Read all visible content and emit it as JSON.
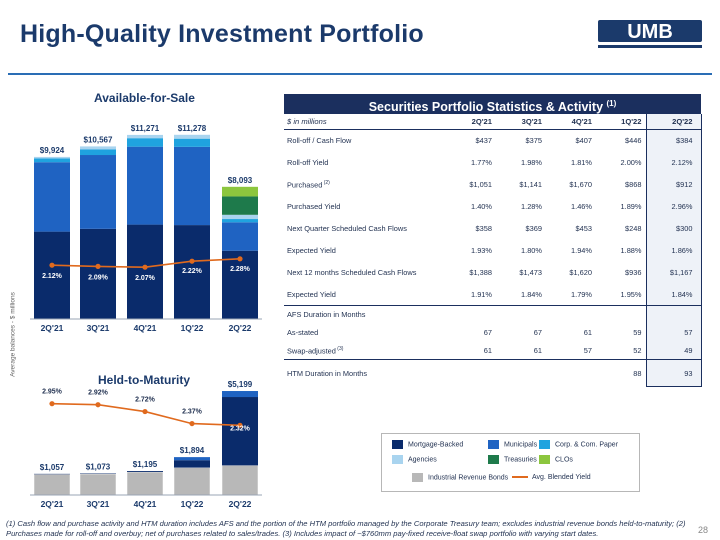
{
  "header": {
    "title": "High-Quality Investment Portfolio",
    "logo_text": "UMB"
  },
  "side_axis_label": "Average balances - $ millions",
  "afs_title": "Available-for-Sale",
  "htm_title": "Held-to-Maturity",
  "colors": {
    "mortgage_backed": "#0a2b6b",
    "municipals": "#1f63c2",
    "corp_com_paper": "#1fa3df",
    "agencies": "#a9d4ef",
    "treasuries": "#1e7a4b",
    "clos": "#8cc63e",
    "industrial_revenue_bonds": "#b8b8b8",
    "avg_blended_yield": "#e06a1e",
    "header_navy": "#1b2f5e",
    "title_blue": "#1b3a6b"
  },
  "chart_data": [
    {
      "type": "bar",
      "stacked": true,
      "name": "Available-for-Sale",
      "categories": [
        "2Q'21",
        "3Q'21",
        "4Q'21",
        "1Q'22",
        "2Q'22"
      ],
      "totals": [
        9924,
        10567,
        11271,
        11278,
        8093
      ],
      "total_labels": [
        "$9,924",
        "$10,567",
        "$11,271",
        "$11,278",
        "$8,093"
      ],
      "series": [
        {
          "name": "Mortgage-Backed",
          "values": [
            5350,
            5520,
            5780,
            5750,
            4180
          ]
        },
        {
          "name": "Municipals",
          "values": [
            4250,
            4520,
            4770,
            4790,
            1740
          ]
        },
        {
          "name": "Corp. & Com. Paper",
          "values": [
            230,
            350,
            520,
            500,
            200
          ]
        },
        {
          "name": "Agencies",
          "values": [
            94,
            177,
            201,
            238,
            260
          ]
        },
        {
          "name": "Treasuries",
          "values": [
            0,
            0,
            0,
            0,
            1123
          ]
        },
        {
          "name": "CLOs",
          "values": [
            0,
            0,
            0,
            0,
            590
          ]
        }
      ],
      "line": {
        "name": "Avg. Blended Yield",
        "values": [
          2.12,
          2.09,
          2.07,
          2.22,
          2.28
        ],
        "labels": [
          "2.12%",
          "2.09%",
          "2.07%",
          "2.22%",
          "2.28%"
        ]
      },
      "ylim": [
        0,
        12000
      ]
    },
    {
      "type": "bar",
      "stacked": true,
      "name": "Held-to-Maturity",
      "categories": [
        "2Q'21",
        "3Q'21",
        "4Q'21",
        "1Q'22",
        "2Q'22"
      ],
      "totals": [
        1057,
        1073,
        1195,
        1894,
        5199
      ],
      "total_labels": [
        "$1,057",
        "$1,073",
        "$1,195",
        "$1,894",
        "$5,199"
      ],
      "series": [
        {
          "name": "Industrial Revenue Bonds",
          "values": [
            1037,
            1050,
            1150,
            1370,
            1480
          ]
        },
        {
          "name": "Mortgage-Backed",
          "values": [
            20,
            23,
            45,
            370,
            3419
          ]
        },
        {
          "name": "Municipals",
          "values": [
            0,
            0,
            0,
            154,
            300
          ]
        }
      ],
      "line": {
        "name": "Avg. Blended Yield",
        "values": [
          2.95,
          2.92,
          2.72,
          2.37,
          2.32
        ],
        "labels": [
          "2.95%",
          "2.92%",
          "2.72%",
          "2.37%",
          "2.32%"
        ]
      },
      "ylim": [
        0,
        5200
      ]
    }
  ],
  "stats": {
    "title": "Securities Portfolio Statistics & Activity",
    "title_note": "(1)",
    "units": "$ in millions",
    "columns": [
      "2Q'21",
      "3Q'21",
      "4Q'21",
      "1Q'22",
      "2Q'22"
    ],
    "rows": [
      {
        "label": "Roll-off / Cash Flow",
        "note": "",
        "values": [
          "$437",
          "$375",
          "$407",
          "$446",
          "$384"
        ],
        "h": 22
      },
      {
        "label": "Roll-off Yield",
        "note": "",
        "values": [
          "1.77%",
          "1.98%",
          "1.81%",
          "2.00%",
          "2.12%"
        ],
        "h": 22
      },
      {
        "label": "Purchased",
        "note": "(2)",
        "values": [
          "$1,051",
          "$1,141",
          "$1,670",
          "$868",
          "$912"
        ],
        "h": 22
      },
      {
        "label": "Purchased Yield",
        "note": "",
        "values": [
          "1.40%",
          "1.28%",
          "1.46%",
          "1.89%",
          "2.96%"
        ],
        "h": 22
      },
      {
        "label": "Next Quarter Scheduled Cash Flows",
        "note": "",
        "values": [
          "$358",
          "$369",
          "$453",
          "$248",
          "$300"
        ],
        "h": 22
      },
      {
        "label": "Expected Yield",
        "note": "",
        "values": [
          "1.93%",
          "1.80%",
          "1.94%",
          "1.88%",
          "1.86%"
        ],
        "h": 22
      },
      {
        "label": "Next 12 months Scheduled Cash Flows",
        "note": "",
        "values": [
          "$1,388",
          "$1,473",
          "$1,620",
          "$936",
          "$1,167"
        ],
        "h": 22
      },
      {
        "label": "Expected Yield",
        "note": "",
        "values": [
          "1.91%",
          "1.84%",
          "1.79%",
          "1.95%",
          "1.84%"
        ],
        "h": 22
      },
      {
        "label": "AFS Duration in Months",
        "note": "",
        "values": [
          "",
          "",
          "",
          "",
          ""
        ],
        "h": 18,
        "sep": true
      },
      {
        "label": "As-stated",
        "note": "",
        "values": [
          "67",
          "67",
          "61",
          "59",
          "57"
        ],
        "h": 18
      },
      {
        "label": "Swap-adjusted",
        "note": "(3)",
        "values": [
          "61",
          "61",
          "57",
          "52",
          "49"
        ],
        "h": 18
      },
      {
        "label": "HTM Duration in Months",
        "note": "",
        "values": [
          "",
          "",
          "",
          "88",
          "93"
        ],
        "h": 27,
        "sep": true,
        "last": true
      }
    ]
  },
  "legend": {
    "items": [
      "Mortgage-Backed",
      "Municipals",
      "Corp. & Com. Paper",
      "Agencies",
      "Treasuries",
      "CLOs",
      "Industrial Revenue Bonds",
      "Avg. Blended Yield"
    ]
  },
  "footnote": "(1) Cash flow and purchase activity and HTM duration includes AFS and the portion of the HTM portfolio managed by the Corporate Treasury team; excludes industrial revenue bonds held-to-maturity; (2) Purchases made for roll-off and overbuy; net of purchases related to sales/trades. (3) Includes impact of ~$760mm pay-fixed receive-float swap portfolio with varying start dates.",
  "page_number": "28"
}
